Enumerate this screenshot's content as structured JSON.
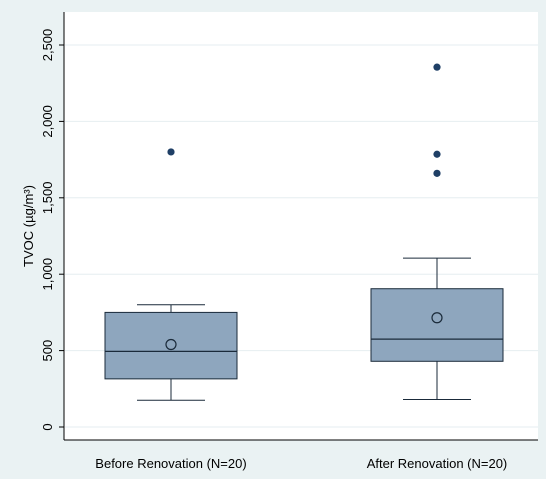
{
  "chart_data": {
    "type": "box",
    "ylabel": "TVOC (µg/m³)",
    "xlabel": "",
    "ylim": [
      -100,
      2580
    ],
    "yticks": [
      0,
      500,
      1000,
      1500,
      2000,
      2500
    ],
    "ytick_labels": [
      "0",
      "500",
      "1,000",
      "1,500",
      "2,000",
      "2,500"
    ],
    "grid": true,
    "categories": [
      "Before Renovation (N=20)",
      "After Renovation (N=20)"
    ],
    "boxes": [
      {
        "category": "Before Renovation (N=20)",
        "whisker_low": 175,
        "q1": 315,
        "median": 495,
        "q3": 750,
        "whisker_high": 800,
        "mean": 540,
        "outliers": [
          1800
        ]
      },
      {
        "category": "After Renovation (N=20)",
        "whisker_low": 180,
        "q1": 430,
        "median": 575,
        "q3": 905,
        "whisker_high": 1105,
        "mean": 715,
        "outliers": [
          1660,
          1785,
          2355
        ]
      }
    ],
    "colors": {
      "background": "#eaf2f3",
      "plot_background": "#ffffff",
      "grid": "#e6eef0",
      "box_fill": "#8ea6be",
      "box_stroke": "#1a2a3a",
      "outlier": "#1f3f66"
    }
  }
}
